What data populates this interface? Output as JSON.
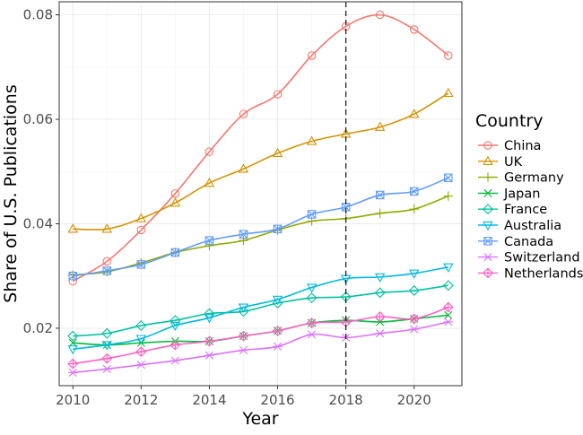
{
  "chart_data": {
    "type": "line",
    "xlabel": "Year",
    "ylabel": "Share of U.S. Publications",
    "xlim": [
      2009.6,
      2021.4
    ],
    "ylim": [
      0.009,
      0.0825
    ],
    "x_ticks": [
      2010,
      2012,
      2014,
      2016,
      2018,
      2020
    ],
    "y_ticks": [
      0.02,
      0.04,
      0.06,
      0.08
    ],
    "x_tick_labels": [
      "2010",
      "2012",
      "2014",
      "2016",
      "2018",
      "2020"
    ],
    "y_tick_labels": [
      "0.02",
      "0.04",
      "0.06",
      "0.08"
    ],
    "grid": true,
    "reference_line": {
      "x": 2018,
      "style": "dashed"
    },
    "legend": {
      "title": "Country",
      "position": "right"
    },
    "x": [
      2010,
      2011,
      2012,
      2013,
      2014,
      2015,
      2016,
      2017,
      2018,
      2019,
      2020,
      2021
    ],
    "series": [
      {
        "name": "China",
        "color": "#F8766D",
        "marker": "circle",
        "values": [
          0.029,
          0.0328,
          0.0388,
          0.0458,
          0.0538,
          0.061,
          0.0648,
          0.0722,
          0.0778,
          0.08,
          0.0772,
          0.0722
        ]
      },
      {
        "name": "UK",
        "color": "#D39200",
        "marker": "triangle",
        "values": [
          0.039,
          0.039,
          0.041,
          0.044,
          0.0478,
          0.0505,
          0.0535,
          0.0558,
          0.0572,
          0.0585,
          0.061,
          0.065
        ]
      },
      {
        "name": "Germany",
        "color": "#93AA00",
        "marker": "plus",
        "values": [
          0.0302,
          0.0308,
          0.0325,
          0.0345,
          0.0358,
          0.0368,
          0.0388,
          0.0405,
          0.041,
          0.042,
          0.0428,
          0.0453
        ]
      },
      {
        "name": "Japan",
        "color": "#00BA38",
        "marker": "x",
        "values": [
          0.0172,
          0.0168,
          0.0172,
          0.0175,
          0.0175,
          0.0185,
          0.0195,
          0.021,
          0.0215,
          0.0212,
          0.0218,
          0.0225
        ]
      },
      {
        "name": "France",
        "color": "#00C19F",
        "marker": "diamond",
        "values": [
          0.0185,
          0.019,
          0.0205,
          0.0215,
          0.0228,
          0.0232,
          0.0248,
          0.0258,
          0.026,
          0.0268,
          0.0272,
          0.0282
        ]
      },
      {
        "name": "Australia",
        "color": "#00B9E3",
        "marker": "triangle-down",
        "values": [
          0.016,
          0.0168,
          0.018,
          0.0205,
          0.022,
          0.024,
          0.0255,
          0.0278,
          0.0295,
          0.0298,
          0.0305,
          0.0317
        ]
      },
      {
        "name": "Canada",
        "color": "#619CFF",
        "marker": "square-x",
        "values": [
          0.03,
          0.031,
          0.0322,
          0.0345,
          0.0368,
          0.038,
          0.039,
          0.0418,
          0.0432,
          0.0455,
          0.0462,
          0.0488
        ]
      },
      {
        "name": "Switzerland",
        "color": "#DB72FB",
        "marker": "asterisk",
        "values": [
          0.0115,
          0.0122,
          0.013,
          0.0138,
          0.0148,
          0.0158,
          0.0165,
          0.0188,
          0.0182,
          0.019,
          0.0198,
          0.0212
        ]
      },
      {
        "name": "Netherlands",
        "color": "#FF61C3",
        "marker": "diamond-plus",
        "values": [
          0.0132,
          0.0142,
          0.0155,
          0.0168,
          0.0175,
          0.0185,
          0.0195,
          0.021,
          0.0212,
          0.0222,
          0.0218,
          0.024
        ]
      }
    ]
  }
}
